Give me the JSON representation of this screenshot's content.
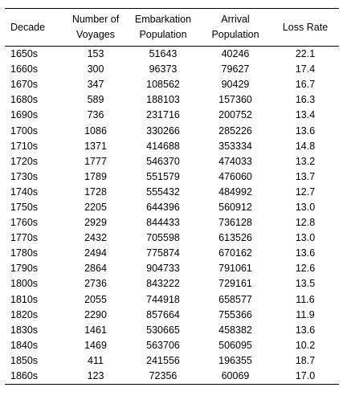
{
  "columns": [
    {
      "key": "decade",
      "lines": [
        "Decade"
      ]
    },
    {
      "key": "voyages",
      "lines": [
        "Number of",
        "Voyages"
      ]
    },
    {
      "key": "embarkation",
      "lines": [
        "Embarkation",
        "Population"
      ]
    },
    {
      "key": "arrival",
      "lines": [
        "Arrival",
        "Population"
      ]
    },
    {
      "key": "loss",
      "lines": [
        "Loss Rate"
      ]
    }
  ],
  "rows": [
    [
      "1650s",
      "153",
      "51643",
      "40246",
      "22.1"
    ],
    [
      "1660s",
      "300",
      "96373",
      "79627",
      "17.4"
    ],
    [
      "1670s",
      "347",
      "108562",
      "90429",
      "16.7"
    ],
    [
      "1680s",
      "589",
      "188103",
      "157360",
      "16.3"
    ],
    [
      "1690s",
      "736",
      "231716",
      "200752",
      "13.4"
    ],
    [
      "1700s",
      "1086",
      "330266",
      "285226",
      "13.6"
    ],
    [
      "1710s",
      "1371",
      "414688",
      "353334",
      "14.8"
    ],
    [
      "1720s",
      "1777",
      "546370",
      "474033",
      "13.2"
    ],
    [
      "1730s",
      "1789",
      "551579",
      "476060",
      "13.7"
    ],
    [
      "1740s",
      "1728",
      "555432",
      "484992",
      "12.7"
    ],
    [
      "1750s",
      "2205",
      "644396",
      "560912",
      "13.0"
    ],
    [
      "1760s",
      "2929",
      "844433",
      "736128",
      "12.8"
    ],
    [
      "1770s",
      "2432",
      "705598",
      "613526",
      "13.0"
    ],
    [
      "1780s",
      "2494",
      "775874",
      "670162",
      "13.6"
    ],
    [
      "1790s",
      "2864",
      "904733",
      "791061",
      "12.6"
    ],
    [
      "1800s",
      "2736",
      "843222",
      "729161",
      "13.5"
    ],
    [
      "1810s",
      "2055",
      "744918",
      "658577",
      "11.6"
    ],
    [
      "1820s",
      "2290",
      "857664",
      "755366",
      "11.9"
    ],
    [
      "1830s",
      "1461",
      "530665",
      "458382",
      "13.6"
    ],
    [
      "1840s",
      "1469",
      "563706",
      "506095",
      "10.2"
    ],
    [
      "1850s",
      "411",
      "241556",
      "196355",
      "18.7"
    ],
    [
      "1860s",
      "123",
      "72356",
      "60069",
      "17.0"
    ]
  ]
}
